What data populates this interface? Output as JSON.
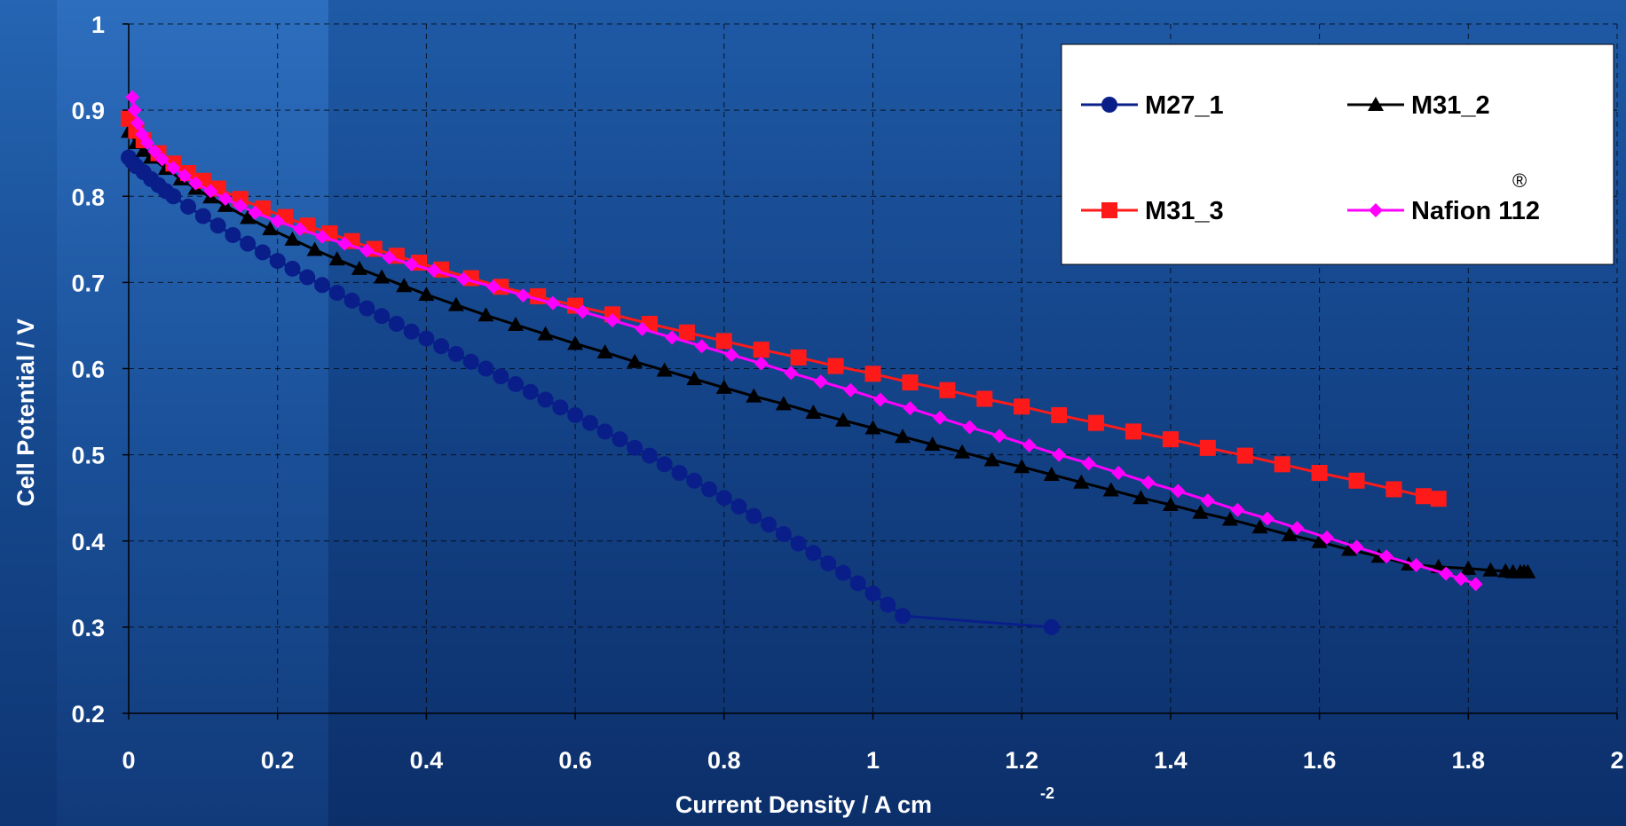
{
  "chart_data": {
    "type": "line",
    "xlabel": "Current Density / A cm",
    "xlabel_superscript": "-2",
    "ylabel": "Cell Potential / V",
    "xlim": [
      0,
      2
    ],
    "ylim": [
      0.2,
      1
    ],
    "xticks": [
      "0",
      "0.2",
      "0.4",
      "0.6",
      "0.8",
      "1",
      "1.2",
      "1.4",
      "1.6",
      "1.8",
      "2"
    ],
    "yticks": [
      "0.2",
      "0.3",
      "0.4",
      "0.5",
      "0.6",
      "0.7",
      "0.8",
      "0.9",
      "1"
    ],
    "grid": true,
    "legend_position": "top-right",
    "series": [
      {
        "name": "M27_1",
        "color": "#0a1e8a",
        "marker": "circle",
        "x": [
          0,
          0.005,
          0.01,
          0.02,
          0.03,
          0.04,
          0.05,
          0.06,
          0.08,
          0.1,
          0.12,
          0.14,
          0.16,
          0.18,
          0.2,
          0.22,
          0.24,
          0.26,
          0.28,
          0.3,
          0.32,
          0.34,
          0.36,
          0.38,
          0.4,
          0.42,
          0.44,
          0.46,
          0.48,
          0.5,
          0.52,
          0.54,
          0.56,
          0.58,
          0.6,
          0.62,
          0.64,
          0.66,
          0.68,
          0.7,
          0.72,
          0.74,
          0.76,
          0.78,
          0.8,
          0.82,
          0.84,
          0.86,
          0.88,
          0.9,
          0.92,
          0.94,
          0.96,
          0.98,
          1.0,
          1.02,
          1.04,
          1.06,
          1.08,
          1.1,
          1.12,
          1.14,
          1.16,
          1.18,
          1.2,
          1.22,
          1.24
        ],
        "y": [
          0.845,
          0.84,
          0.835,
          0.828,
          0.82,
          0.813,
          0.806,
          0.8,
          0.788,
          0.777,
          0.766,
          0.755,
          0.745,
          0.735,
          0.725,
          0.716,
          0.706,
          0.697,
          0.688,
          0.679,
          0.67,
          0.661,
          0.652,
          0.643,
          0.635,
          0.626,
          0.617,
          0.608,
          0.6,
          0.591,
          0.582,
          0.573,
          0.564,
          0.555,
          0.546,
          0.537,
          0.527,
          0.518,
          0.508,
          0.499,
          0.489,
          0.479,
          0.47,
          0.46,
          0.45,
          0.44,
          0.429,
          0.419,
          0.408,
          0.397,
          0.386,
          0.374,
          0.363,
          0.351,
          0.339,
          0.326,
          0.313,
          0.3,
          0.3,
          0.3,
          0.3,
          0.3,
          0.3,
          0.3,
          0.3,
          0.3,
          0.3
        ]
      },
      {
        "name": "M31_2",
        "color": "#000000",
        "marker": "triangle",
        "x": [
          0,
          0.01,
          0.02,
          0.03,
          0.05,
          0.07,
          0.09,
          0.11,
          0.13,
          0.16,
          0.19,
          0.22,
          0.25,
          0.28,
          0.31,
          0.34,
          0.37,
          0.4,
          0.44,
          0.48,
          0.52,
          0.56,
          0.6,
          0.64,
          0.68,
          0.72,
          0.76,
          0.8,
          0.84,
          0.88,
          0.92,
          0.96,
          1.0,
          1.04,
          1.08,
          1.12,
          1.16,
          1.2,
          1.24,
          1.28,
          1.32,
          1.36,
          1.4,
          1.44,
          1.48,
          1.52,
          1.56,
          1.6,
          1.64,
          1.68,
          1.72,
          1.76,
          1.8,
          1.83,
          1.85,
          1.86,
          1.87,
          1.875,
          1.88
        ],
        "y": [
          0.875,
          0.862,
          0.853,
          0.845,
          0.832,
          0.82,
          0.809,
          0.799,
          0.789,
          0.775,
          0.762,
          0.75,
          0.738,
          0.727,
          0.716,
          0.706,
          0.696,
          0.686,
          0.674,
          0.662,
          0.651,
          0.64,
          0.629,
          0.619,
          0.608,
          0.598,
          0.588,
          0.578,
          0.568,
          0.559,
          0.549,
          0.54,
          0.531,
          0.521,
          0.512,
          0.503,
          0.494,
          0.486,
          0.477,
          0.468,
          0.459,
          0.45,
          0.442,
          0.433,
          0.425,
          0.416,
          0.407,
          0.399,
          0.39,
          0.382,
          0.373,
          0.37,
          0.368,
          0.366,
          0.365,
          0.364,
          0.364,
          0.364,
          0.364
        ]
      },
      {
        "name": "M31_3",
        "color": "#ff1a1a",
        "marker": "square",
        "x": [
          0,
          0.01,
          0.02,
          0.04,
          0.06,
          0.08,
          0.1,
          0.12,
          0.15,
          0.18,
          0.21,
          0.24,
          0.27,
          0.3,
          0.33,
          0.36,
          0.39,
          0.42,
          0.46,
          0.5,
          0.55,
          0.6,
          0.65,
          0.7,
          0.75,
          0.8,
          0.85,
          0.9,
          0.95,
          1.0,
          1.05,
          1.1,
          1.15,
          1.2,
          1.25,
          1.3,
          1.35,
          1.4,
          1.45,
          1.5,
          1.55,
          1.6,
          1.65,
          1.7,
          1.74,
          1.76
        ],
        "y": [
          0.89,
          0.876,
          0.865,
          0.85,
          0.838,
          0.827,
          0.818,
          0.809,
          0.797,
          0.786,
          0.776,
          0.766,
          0.757,
          0.748,
          0.739,
          0.731,
          0.723,
          0.715,
          0.705,
          0.695,
          0.684,
          0.673,
          0.663,
          0.652,
          0.642,
          0.632,
          0.622,
          0.613,
          0.603,
          0.594,
          0.584,
          0.575,
          0.565,
          0.556,
          0.546,
          0.537,
          0.527,
          0.518,
          0.508,
          0.499,
          0.489,
          0.479,
          0.47,
          0.46,
          0.452,
          0.449
        ]
      },
      {
        "name": "Nafion 112",
        "name_superscript": "®",
        "color": "#ff00ff",
        "marker": "diamond",
        "x": [
          0.005,
          0.008,
          0.012,
          0.018,
          0.025,
          0.035,
          0.045,
          0.06,
          0.075,
          0.09,
          0.11,
          0.13,
          0.15,
          0.17,
          0.2,
          0.23,
          0.26,
          0.29,
          0.32,
          0.35,
          0.38,
          0.41,
          0.45,
          0.49,
          0.53,
          0.57,
          0.61,
          0.65,
          0.69,
          0.73,
          0.77,
          0.81,
          0.85,
          0.89,
          0.93,
          0.97,
          1.01,
          1.05,
          1.09,
          1.13,
          1.17,
          1.21,
          1.25,
          1.29,
          1.33,
          1.37,
          1.41,
          1.45,
          1.49,
          1.53,
          1.57,
          1.61,
          1.65,
          1.69,
          1.73,
          1.77,
          1.79,
          1.81
        ],
        "y": [
          0.915,
          0.9,
          0.885,
          0.872,
          0.862,
          0.852,
          0.843,
          0.833,
          0.824,
          0.815,
          0.806,
          0.797,
          0.789,
          0.781,
          0.771,
          0.762,
          0.753,
          0.745,
          0.737,
          0.729,
          0.721,
          0.714,
          0.704,
          0.695,
          0.685,
          0.676,
          0.666,
          0.656,
          0.646,
          0.636,
          0.626,
          0.616,
          0.606,
          0.595,
          0.585,
          0.575,
          0.564,
          0.554,
          0.543,
          0.532,
          0.522,
          0.511,
          0.5,
          0.49,
          0.479,
          0.468,
          0.458,
          0.447,
          0.436,
          0.426,
          0.415,
          0.404,
          0.393,
          0.382,
          0.372,
          0.362,
          0.356,
          0.35
        ]
      }
    ]
  }
}
